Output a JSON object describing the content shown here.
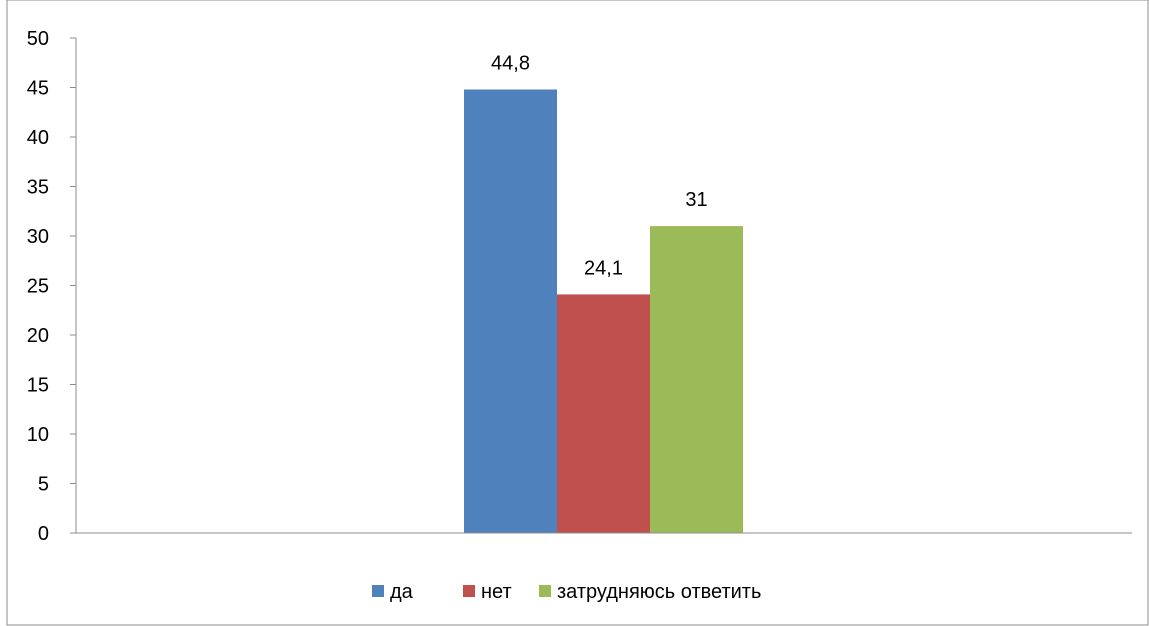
{
  "chart_data": {
    "type": "bar",
    "categories": [
      ""
    ],
    "series": [
      {
        "name": "да",
        "values": [
          44.8
        ],
        "color": "#4F81BD",
        "label": "44,8"
      },
      {
        "name": "нет",
        "values": [
          24.1
        ],
        "color": "#C0504D",
        "label": "24,1"
      },
      {
        "name": "затрудняюсь ответить",
        "values": [
          31
        ],
        "color": "#9BBB59",
        "label": "31"
      }
    ],
    "ylim": [
      0,
      50
    ],
    "yticks": [
      "0",
      "5",
      "10",
      "15",
      "20",
      "25",
      "30",
      "35",
      "40",
      "45",
      "50"
    ],
    "title": "",
    "xlabel": "",
    "ylabel": "",
    "grid": false,
    "legend": "bottom"
  }
}
